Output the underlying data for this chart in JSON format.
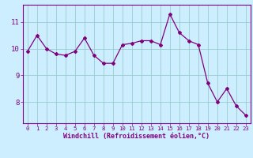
{
  "x": [
    0,
    1,
    2,
    3,
    4,
    5,
    6,
    7,
    8,
    9,
    10,
    11,
    12,
    13,
    14,
    15,
    16,
    17,
    18,
    19,
    20,
    21,
    22,
    23
  ],
  "y": [
    9.9,
    10.5,
    10.0,
    9.8,
    9.75,
    9.9,
    10.4,
    9.75,
    9.45,
    9.45,
    10.15,
    10.2,
    10.3,
    10.3,
    10.15,
    11.3,
    10.6,
    10.3,
    10.15,
    8.7,
    8.0,
    8.5,
    7.85,
    7.5
  ],
  "line_color": "#800080",
  "marker": "D",
  "marker_size": 2.0,
  "bg_color": "#cceeff",
  "grid_color": "#99cccc",
  "xlabel": "Windchill (Refroidissement éolien,°C)",
  "ylabel": "",
  "ylim": [
    7.2,
    11.65
  ],
  "yticks": [
    8,
    9,
    10,
    11
  ],
  "xtick_labels": [
    "0",
    "1",
    "2",
    "3",
    "4",
    "5",
    "6",
    "7",
    "8",
    "9",
    "10",
    "11",
    "12",
    "13",
    "14",
    "15",
    "16",
    "17",
    "18",
    "19",
    "20",
    "21",
    "22",
    "23"
  ],
  "xlabel_color": "#800080",
  "tick_color": "#800080",
  "spine_color": "#800080",
  "xlabel_fontsize": 6.0,
  "xtick_fontsize": 5.2,
  "ytick_fontsize": 6.5
}
